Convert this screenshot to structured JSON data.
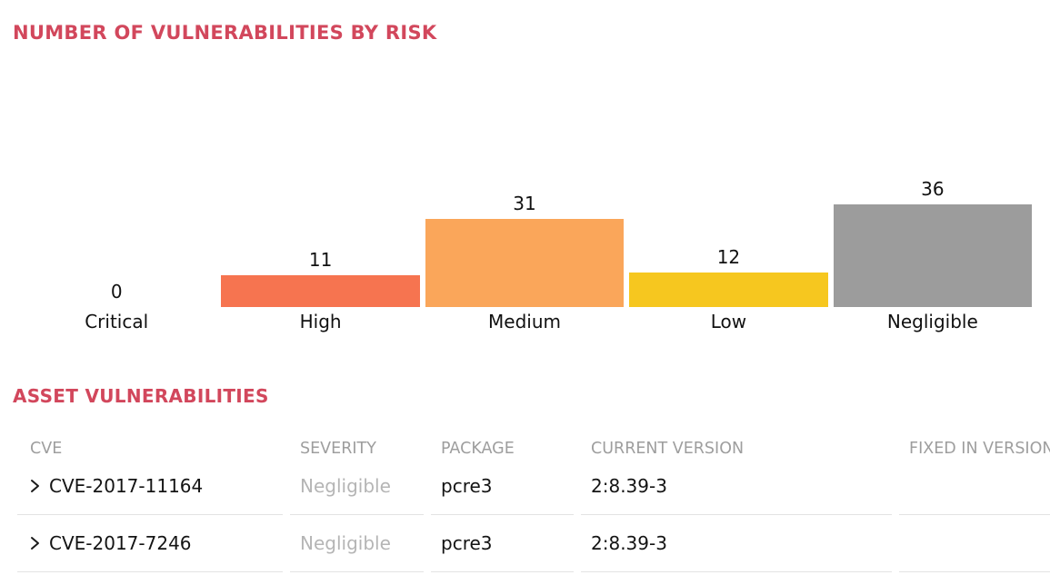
{
  "colors": {
    "accent": "#d2475c",
    "table_header_text": "#9e9e9e",
    "severity_negligible_text": "#b5b5b5",
    "row_text": "#141414",
    "divider": "#e3e3e3"
  },
  "chart_data": {
    "type": "bar",
    "title": "NUMBER OF VULNERABILITIES BY RISK",
    "categories": [
      "Critical",
      "High",
      "Medium",
      "Low",
      "Negligible"
    ],
    "values": [
      0,
      11,
      31,
      12,
      36
    ],
    "colors": [
      null,
      "#f67450",
      "#faa65a",
      "#f6c71f",
      "#9c9c9c"
    ],
    "xlabel": "",
    "ylabel": "",
    "ylim": [
      0,
      36
    ],
    "grid": false,
    "legend": false,
    "value_labels": true
  },
  "table": {
    "title": "ASSET VULNERABILITIES",
    "columns": [
      "CVE",
      "SEVERITY",
      "PACKAGE",
      "CURRENT VERSION",
      "FIXED IN VERSION"
    ],
    "rows": [
      {
        "cve": "CVE-2017-11164",
        "severity": "Negligible",
        "package": "pcre3",
        "current_version": "2:8.39-3",
        "fixed_in_version": ""
      },
      {
        "cve": "CVE-2017-7246",
        "severity": "Negligible",
        "package": "pcre3",
        "current_version": "2:8.39-3",
        "fixed_in_version": ""
      }
    ]
  }
}
